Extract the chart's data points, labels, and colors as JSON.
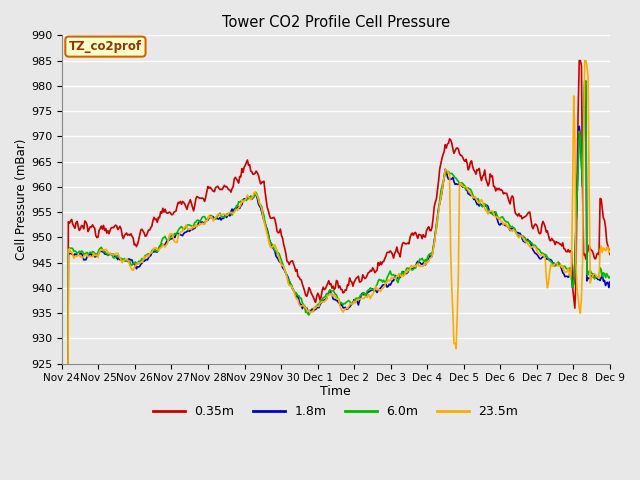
{
  "title": "Tower CO2 Profile Cell Pressure",
  "xlabel": "Time",
  "ylabel": "Cell Pressure (mBar)",
  "ylim": [
    925,
    990
  ],
  "yticks": [
    925,
    930,
    935,
    940,
    945,
    950,
    955,
    960,
    965,
    970,
    975,
    980,
    985,
    990
  ],
  "bg_color": "#e8e8e8",
  "grid_color": "#ffffff",
  "legend_label": "TZ_co2prof",
  "series_colors": {
    "0.35m": "#cc0000",
    "1.8m": "#0000cc",
    "6.0m": "#00bb00",
    "23.5m": "#ffaa00"
  },
  "x_tick_labels": [
    "Nov 24",
    "Nov 25",
    "Nov 26",
    "Nov 27",
    "Nov 28",
    "Nov 29",
    "Nov 30",
    "Dec 1",
    "Dec 2",
    "Dec 3",
    "Dec 4",
    "Dec 5",
    "Dec 6",
    "Dec 7",
    "Dec 8",
    "Dec 9"
  ],
  "n_points": 500
}
